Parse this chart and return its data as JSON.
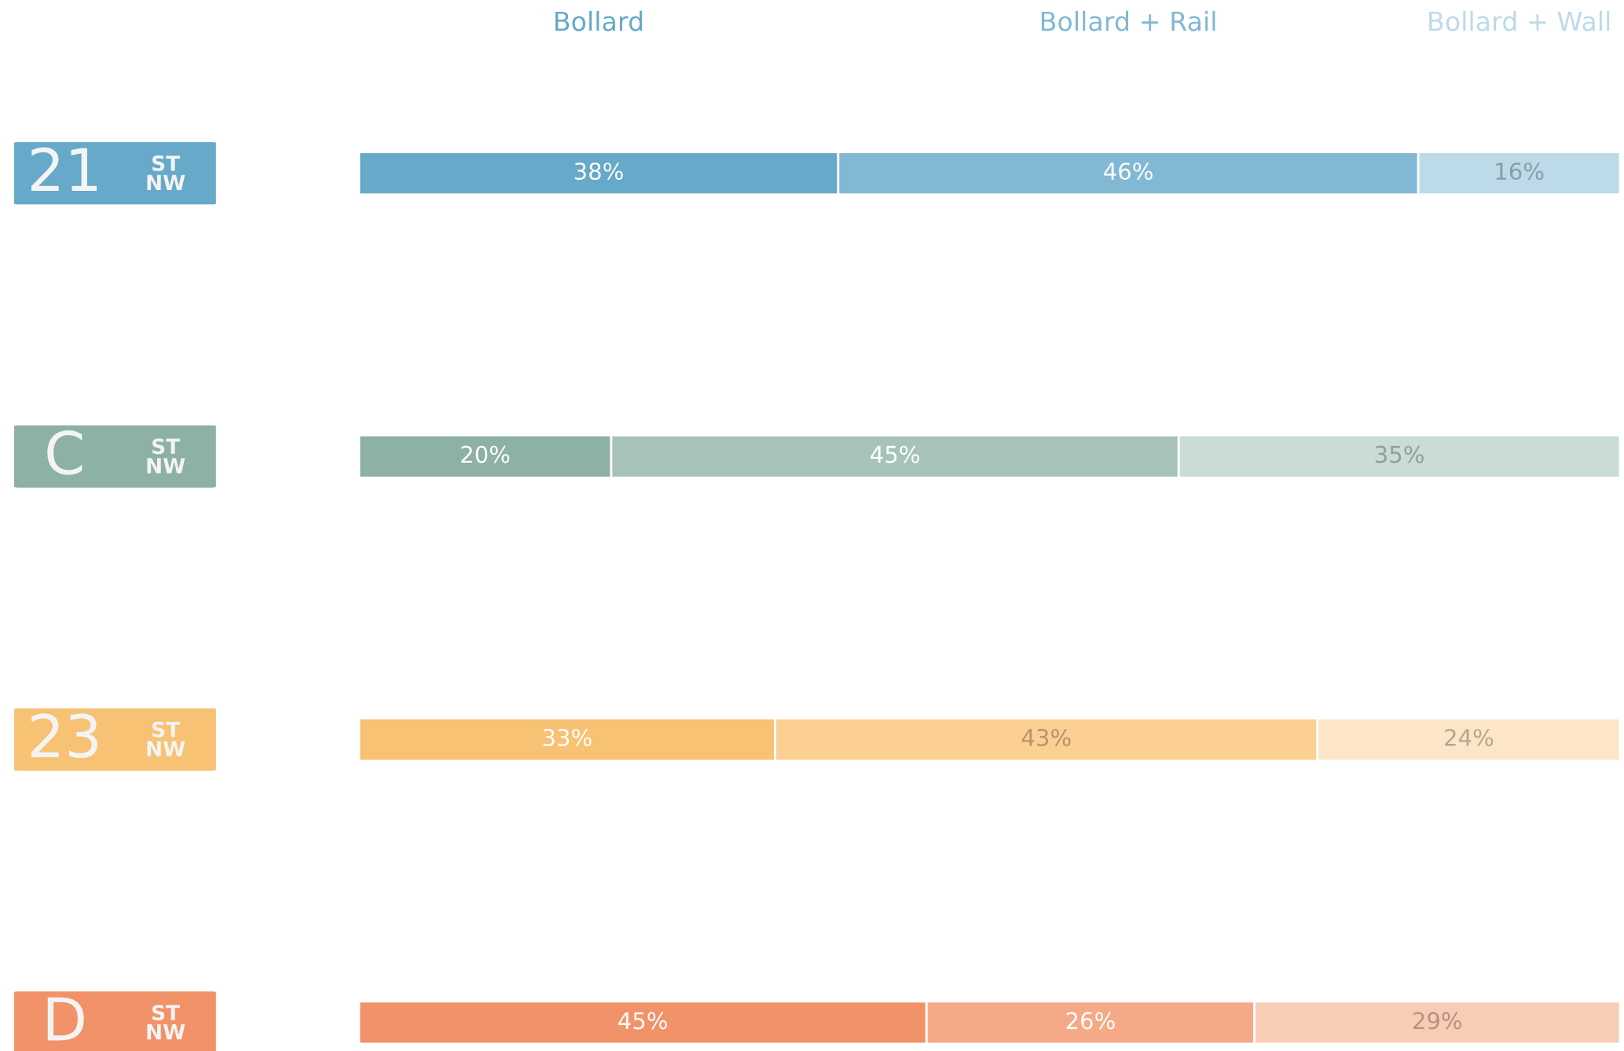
{
  "chart_data": {
    "type": "bar",
    "orientation": "horizontal",
    "stacked": true,
    "tick_labels": "y",
    "categories": [
      "21 ST NW",
      "C ST NW",
      "23 ST NW",
      "D ST NW"
    ],
    "series": [
      {
        "name": "Bollard",
        "values": [
          38,
          20,
          33,
          45
        ],
        "value_labels": [
          "38%",
          "20%",
          "33%",
          "45%"
        ],
        "colors": [
          "#66a9c8",
          "#8db1a2",
          "#f7c274",
          "#f29268"
        ]
      },
      {
        "name": "Bollard + Rail",
        "values": [
          46,
          45,
          43,
          26
        ],
        "value_labels": [
          "46%",
          "45%",
          "43%",
          "26%"
        ],
        "colors": [
          "#82b8d3",
          "#a7c3b8",
          "#fccf93",
          "#f5a986"
        ]
      },
      {
        "name": "Bollard + Wall",
        "values": [
          16,
          35,
          24,
          29
        ],
        "value_labels": [
          "16%",
          "35%",
          "24%",
          "29%"
        ],
        "colors": [
          "#bddae8",
          "#cadcd4",
          "#fde6c8",
          "#f9cdb5"
        ]
      }
    ]
  }
}
